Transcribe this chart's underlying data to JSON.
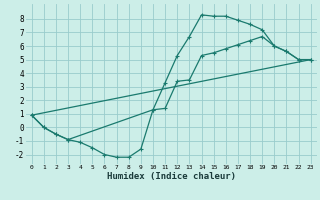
{
  "title": "",
  "xlabel": "Humidex (Indice chaleur)",
  "bg_color": "#cceee8",
  "grid_color": "#99cccc",
  "line_color": "#1a7a6e",
  "xticks": [
    0,
    1,
    2,
    3,
    4,
    5,
    6,
    7,
    8,
    9,
    10,
    11,
    12,
    13,
    14,
    15,
    16,
    17,
    18,
    19,
    20,
    21,
    22,
    23
  ],
  "yticks": [
    -2,
    -1,
    0,
    1,
    2,
    3,
    4,
    5,
    6,
    7,
    8
  ],
  "curve1_x": [
    0,
    1,
    2,
    3,
    4,
    5,
    6,
    7,
    8,
    9,
    10,
    11,
    12,
    13,
    14,
    15,
    16,
    17,
    18,
    19,
    20,
    21,
    22,
    23
  ],
  "curve1_y": [
    0.9,
    0.0,
    -0.5,
    -0.9,
    -1.1,
    -1.5,
    -2.0,
    -2.2,
    -2.2,
    -1.6,
    1.3,
    3.3,
    5.3,
    6.7,
    8.3,
    8.2,
    8.2,
    7.9,
    7.6,
    7.2,
    6.0,
    5.6,
    5.0,
    5.0
  ],
  "curve2_x": [
    0,
    1,
    2,
    3,
    10,
    11,
    12,
    13,
    14,
    15,
    16,
    17,
    18,
    19,
    20,
    21,
    22,
    23
  ],
  "curve2_y": [
    0.9,
    0.0,
    -0.5,
    -0.9,
    1.3,
    1.4,
    3.4,
    3.5,
    5.3,
    5.5,
    5.8,
    6.1,
    6.4,
    6.7,
    6.0,
    5.6,
    5.0,
    5.0
  ],
  "curve3_x": [
    0,
    23
  ],
  "curve3_y": [
    0.9,
    5.0
  ]
}
